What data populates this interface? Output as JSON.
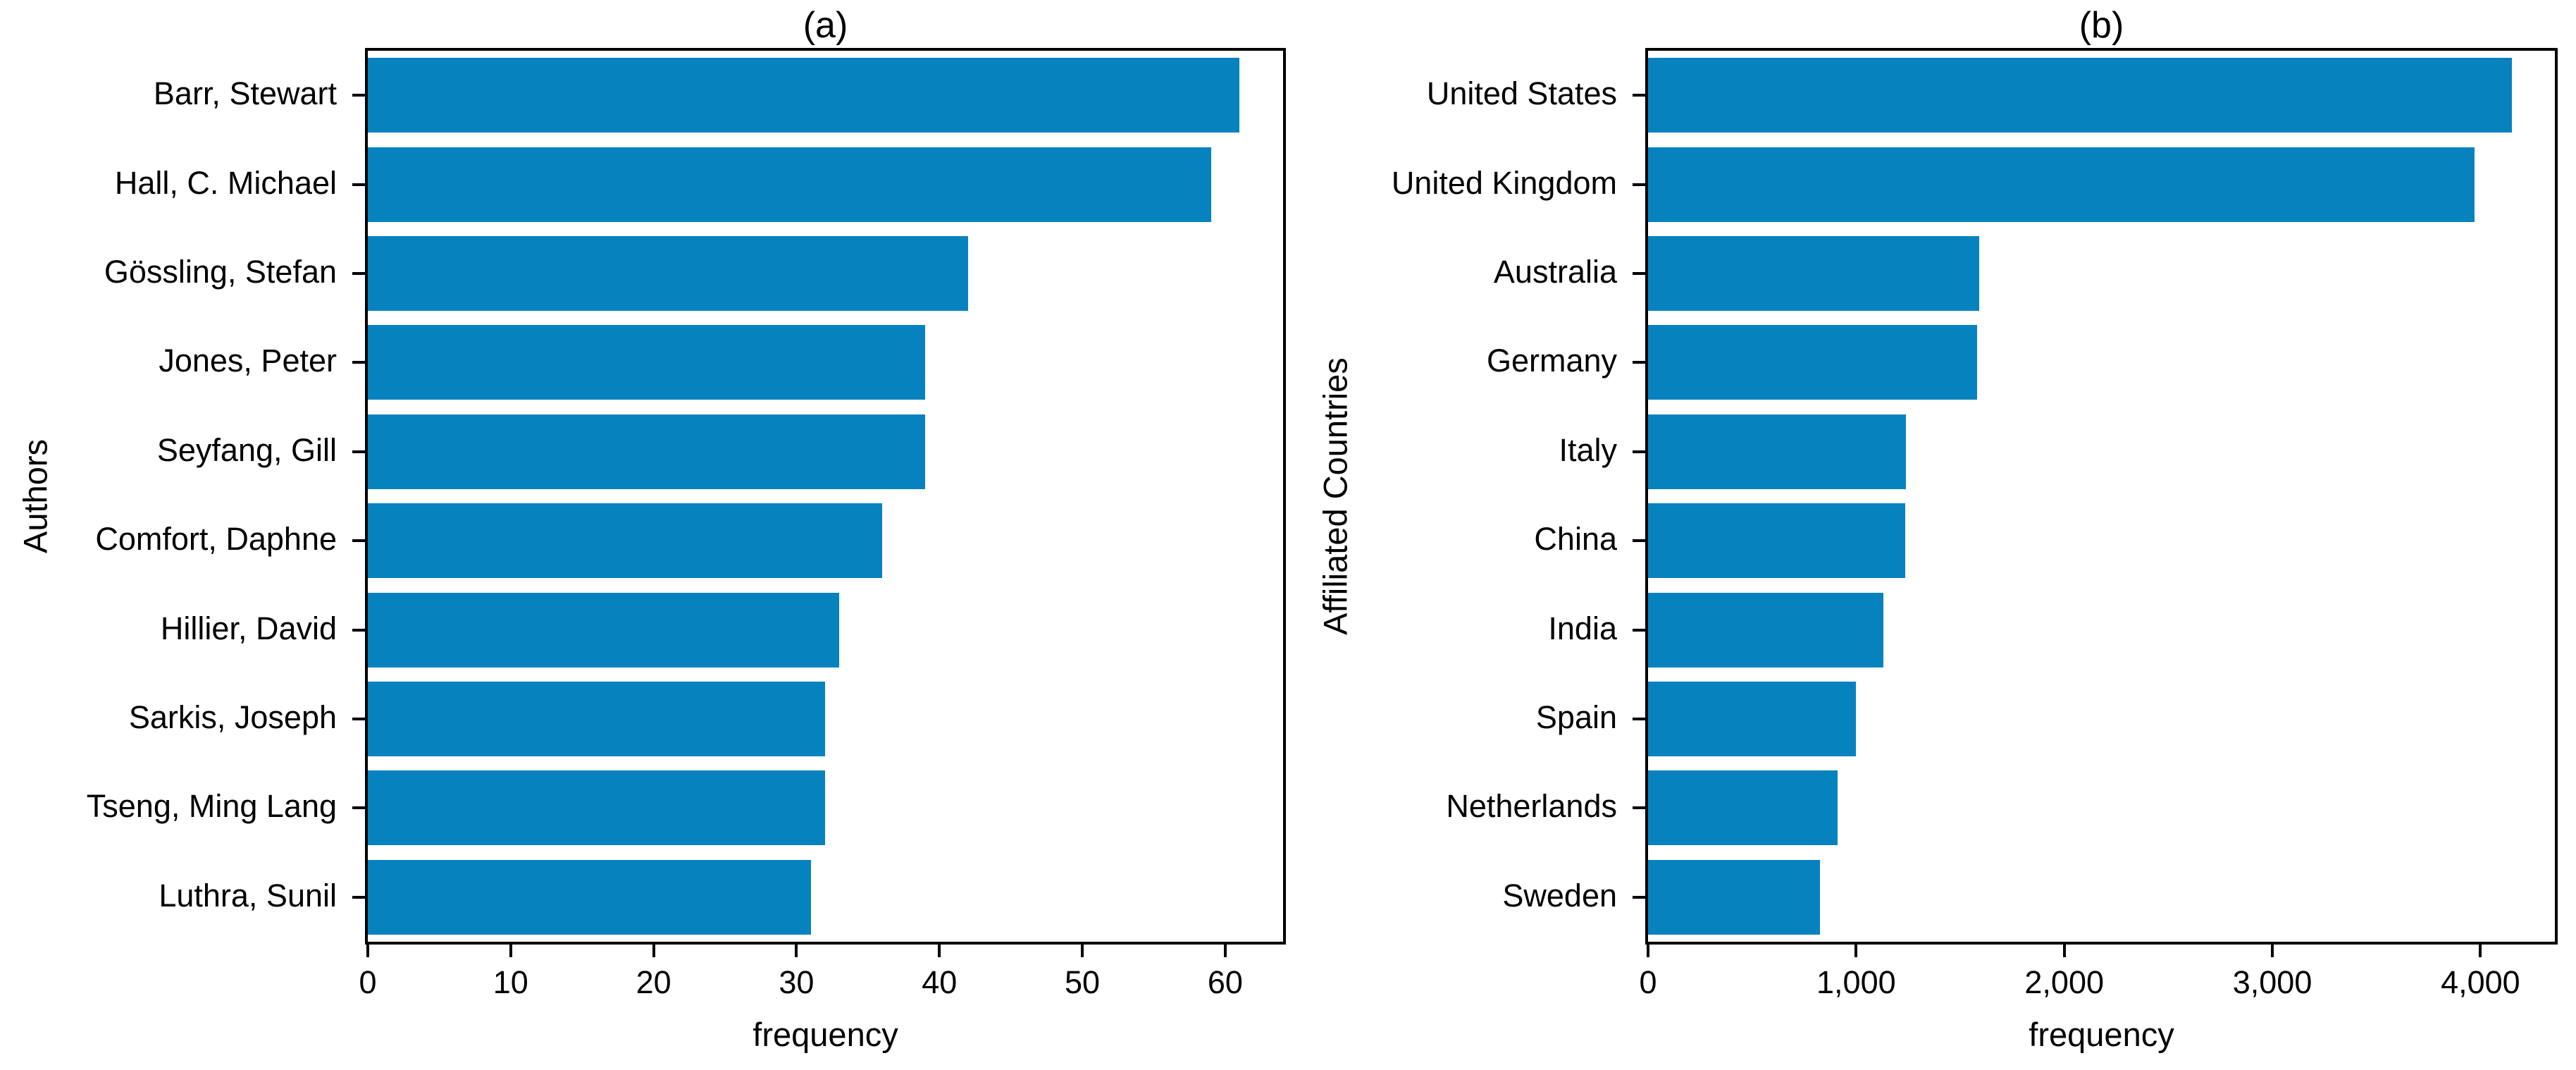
{
  "figure": {
    "background": "#ffffff",
    "text_color": "#000000",
    "axis_color": "#000000"
  },
  "chart_data": [
    {
      "type": "bar",
      "orientation": "horizontal",
      "title": "(a)",
      "xlabel": "frequency",
      "ylabel": "Authors",
      "categories": [
        "Barr, Stewart",
        "Hall, C. Michael",
        "Gössling, Stefan",
        "Jones, Peter",
        "Seyfang, Gill",
        "Comfort, Daphne",
        "Hillier, David",
        "Sarkis, Joseph",
        "Tseng, Ming Lang",
        "Luthra, Sunil"
      ],
      "values": [
        61,
        59,
        42,
        39,
        39,
        36,
        33,
        32,
        32,
        31
      ],
      "xlim": [
        0,
        64.05
      ],
      "xticks": [
        0,
        10,
        20,
        30,
        40,
        50,
        60
      ],
      "xtick_labels": [
        "0",
        "10",
        "20",
        "30",
        "40",
        "50",
        "60"
      ],
      "grid": false,
      "legend": false,
      "bar_color": "#0682bf"
    },
    {
      "type": "bar",
      "orientation": "horizontal",
      "title": "(b)",
      "xlabel": "frequency",
      "ylabel": "Affiliated Countries",
      "categories": [
        "United States",
        "United Kingdom",
        "Australia",
        "Germany",
        "Italy",
        "China",
        "India",
        "Spain",
        "Netherlands",
        "Sweden"
      ],
      "values": [
        4150,
        3970,
        1590,
        1580,
        1240,
        1235,
        1130,
        1000,
        910,
        825
      ],
      "xlim": [
        0,
        4357.5
      ],
      "xticks": [
        0,
        1000,
        2000,
        3000,
        4000
      ],
      "xtick_labels": [
        "0",
        "1,000",
        "2,000",
        "3,000",
        "4,000"
      ],
      "grid": false,
      "legend": false,
      "bar_color": "#0682bf"
    }
  ]
}
